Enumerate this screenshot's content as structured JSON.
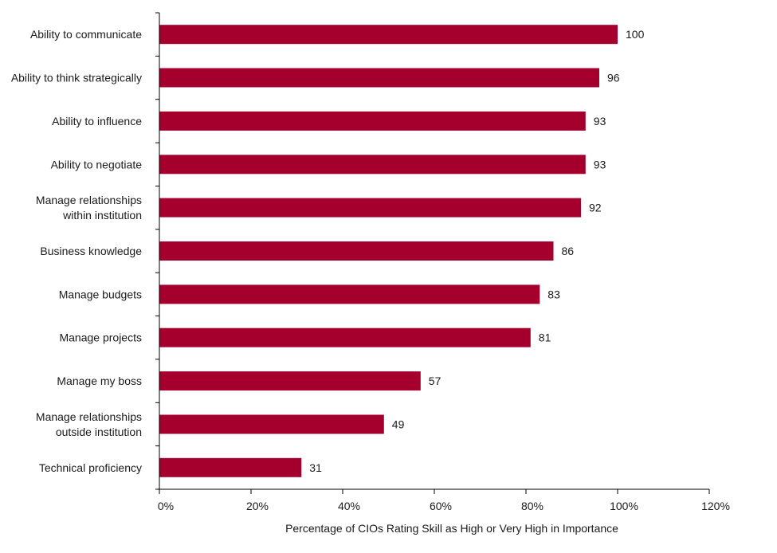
{
  "chart_data": {
    "type": "bar",
    "orientation": "horizontal",
    "categories": [
      [
        "Ability to communicate"
      ],
      [
        "Ability to think strategically"
      ],
      [
        "Ability to influence"
      ],
      [
        "Ability to negotiate"
      ],
      [
        "Manage relationships",
        "within institution"
      ],
      [
        "Business knowledge"
      ],
      [
        "Manage budgets"
      ],
      [
        "Manage projects"
      ],
      [
        "Manage my boss"
      ],
      [
        "Manage relationships",
        "outside institution"
      ],
      [
        "Technical proficiency"
      ]
    ],
    "values": [
      100,
      96,
      93,
      93,
      92,
      86,
      83,
      81,
      57,
      49,
      31
    ],
    "value_labels": [
      "100",
      "96",
      "93",
      "93",
      "92",
      "86",
      "83",
      "81",
      "57",
      "49",
      "31"
    ],
    "xlim": [
      0,
      120
    ],
    "x_ticks": [
      0,
      20,
      40,
      60,
      80,
      100,
      120
    ],
    "x_tick_labels": [
      "0%",
      "20%",
      "40%",
      "60%",
      "80%",
      "100%",
      "120%"
    ],
    "xlabel": "Percentage of CIOs Rating Skill as High or Very High in Importance",
    "bar_color": "#a5002d",
    "grid": false,
    "legend": "none"
  }
}
